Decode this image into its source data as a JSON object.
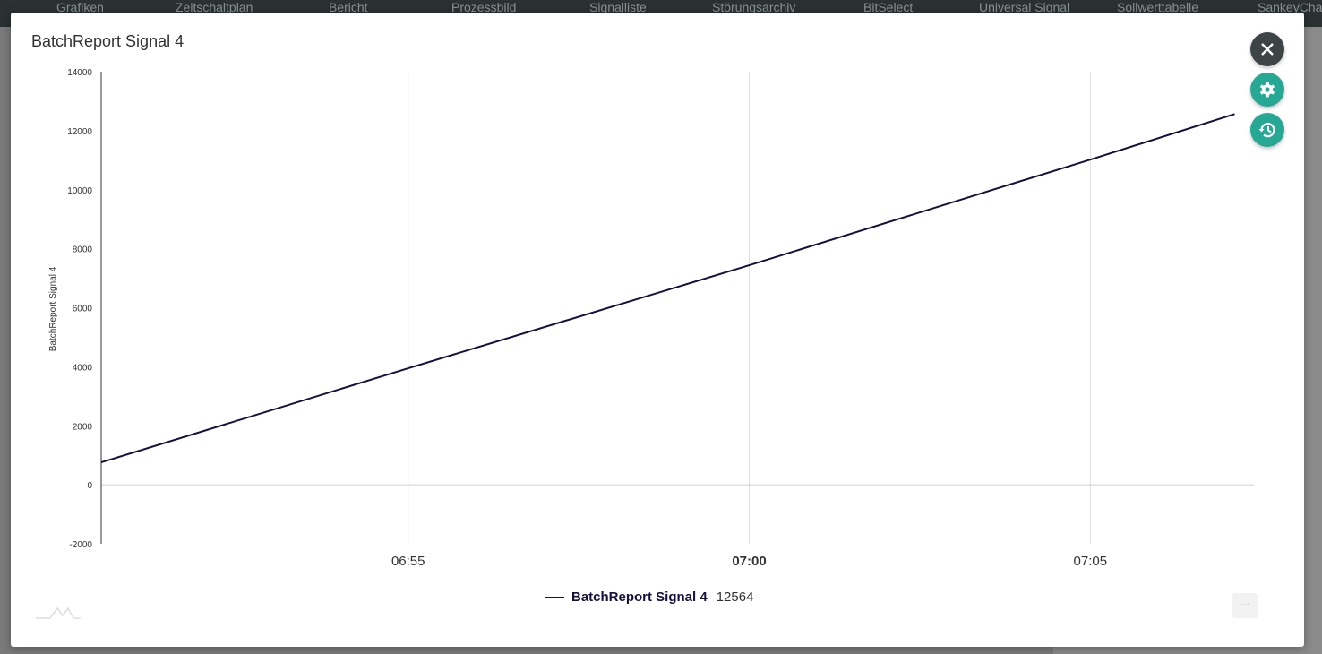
{
  "nav": {
    "items": [
      "Grafiken",
      "Zeitschaltplan",
      "Bericht",
      "Prozessbild",
      "Signalliste",
      "Störungsarchiv",
      "BitSelect",
      "Universal Signal",
      "Sollwerttabelle",
      "SankeyChart"
    ]
  },
  "modal": {
    "title": "BatchReport Signal 4",
    "close_icon": "close-icon",
    "settings_icon": "gear-icon",
    "history_icon": "history-icon",
    "menu_label": "···"
  },
  "legend": {
    "name": "BatchReport Signal 4",
    "value": "12564"
  },
  "chart_data": {
    "type": "line",
    "title": "",
    "xlabel": "",
    "ylabel": "BatchReport Signal 4",
    "ylim": [
      -2000,
      14000
    ],
    "yticks": [
      -2000,
      0,
      2000,
      4000,
      6000,
      8000,
      10000,
      12000,
      14000
    ],
    "xlim": [
      "06:50:30",
      "07:07:20"
    ],
    "xticks": [
      "06:55",
      "07:00",
      "07:05"
    ],
    "grid": "vertical",
    "series": [
      {
        "name": "BatchReport Signal 4",
        "color": "#14103f",
        "x": [
          "06:50:30",
          "06:55:00",
          "07:00:00",
          "07:05:00",
          "07:07:07"
        ],
        "y": [
          760,
          3950,
          7440,
          11020,
          12564
        ]
      }
    ]
  }
}
